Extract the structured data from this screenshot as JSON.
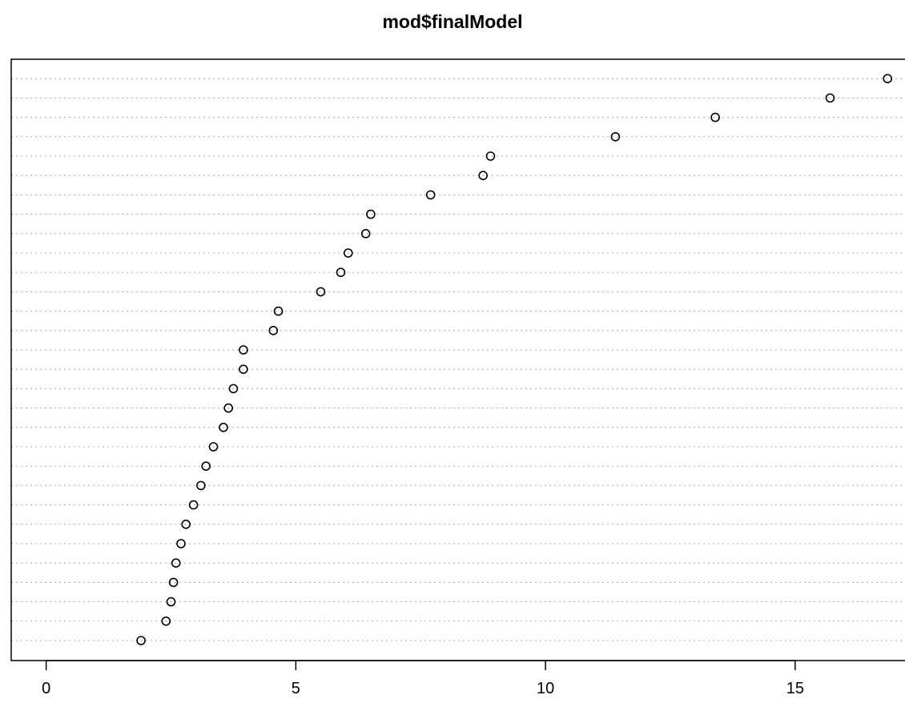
{
  "chart_data": {
    "type": "scatter",
    "subtype": "dotchart",
    "title": "mod$finalModel",
    "xlabel": "",
    "ylabel": "",
    "xlim": [
      -0.7,
      17.2
    ],
    "xticks": [
      0,
      5,
      10,
      15
    ],
    "xtick_labels": [
      "0",
      "5",
      "10",
      "15"
    ],
    "grid": "horizontal dotted lines",
    "legend": "none",
    "values_bottom_to_top": [
      1.9,
      2.4,
      2.5,
      2.55,
      2.6,
      2.7,
      2.8,
      2.95,
      3.1,
      3.2,
      3.35,
      3.55,
      3.65,
      3.75,
      3.95,
      3.95,
      4.55,
      4.65,
      5.5,
      5.9,
      6.05,
      6.4,
      6.5,
      7.7,
      8.75,
      8.9,
      11.4,
      13.4,
      15.7,
      16.85
    ],
    "colors": {
      "point_stroke": "#000000",
      "grid": "#a8a8a8",
      "frame": "#000000"
    }
  }
}
